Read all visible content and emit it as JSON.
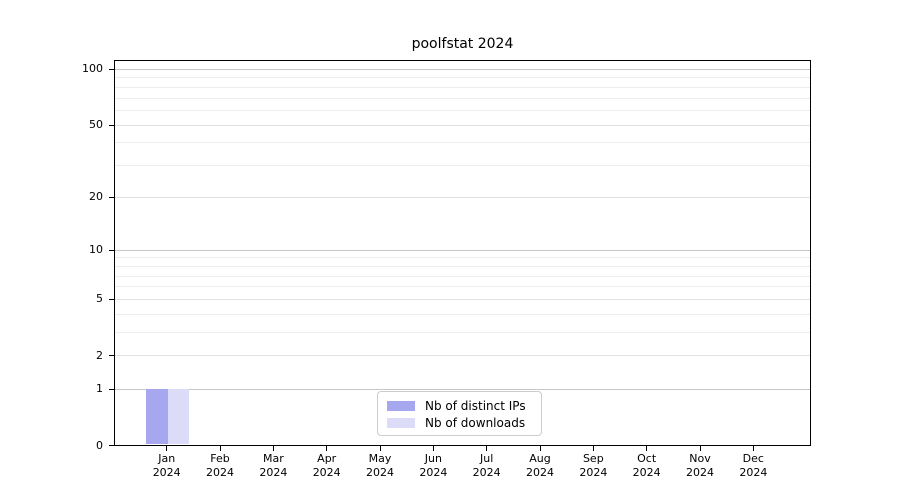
{
  "chart_data": {
    "type": "bar",
    "title": "poolfstat 2024",
    "categories": [
      "Jan",
      "Feb",
      "Mar",
      "Apr",
      "May",
      "Jun",
      "Jul",
      "Aug",
      "Sep",
      "Oct",
      "Nov",
      "Dec"
    ],
    "year_label": "2024",
    "series": [
      {
        "name": "Nb of distinct IPs",
        "color": "#a7a7f0",
        "values": [
          1,
          0,
          0,
          0,
          0,
          0,
          0,
          0,
          0,
          0,
          0,
          0
        ]
      },
      {
        "name": "Nb of downloads",
        "color": "#dcdcf8",
        "values": [
          1,
          0,
          0,
          0,
          0,
          0,
          0,
          0,
          0,
          0,
          0,
          0
        ]
      }
    ],
    "yscale": "log1p",
    "ylim": [
      0,
      113
    ],
    "y_major_ticks": [
      0,
      1,
      2,
      5,
      10,
      20,
      50,
      100
    ],
    "y_minor_gridlines": [
      3,
      4,
      6,
      7,
      8,
      9,
      30,
      40,
      60,
      70,
      80,
      90
    ],
    "grid": true,
    "legend_position": "lower center",
    "colors": {
      "grid_strong": "#c6c6c6",
      "grid_mid": "#e2e2e2",
      "grid_minor": "#ededed",
      "spine": "#000000",
      "text": "#000000"
    }
  }
}
